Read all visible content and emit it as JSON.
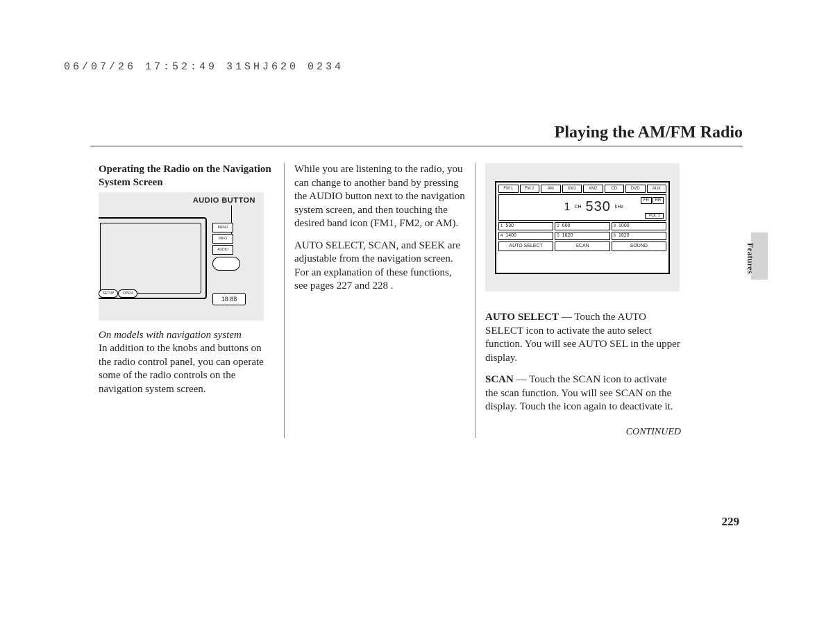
{
  "timestamp": "06/07/26 17:52:49 31SHJ620 0234",
  "page_title": "Playing the AM/FM Radio",
  "side_tab_label": "Features",
  "page_number": "229",
  "continued": "CONTINUED",
  "col1": {
    "heading": "Operating the Radio on the Navigation System Screen",
    "figure_label": "AUDIO BUTTON",
    "buttons": {
      "menu": "MENU",
      "info": "INFO",
      "audio": "AUDIO",
      "setup": "SETUP",
      "open": "OPEN"
    },
    "clock": "18:88",
    "caption_italic": "On models with navigation system",
    "para": "In addition to the knobs and buttons on the radio control panel, you can operate some of the radio controls on the navigation system screen."
  },
  "col2": {
    "para1": "While you are listening to the radio, you can change to another band by pressing the AUDIO button next to the navigation system screen, and then touching the desired band icon (FM1, FM2, or AM).",
    "para2": "AUTO SELECT, SCAN, and SEEK are adjustable from the navigation screen. For an explanation of these functions, see pages 227 and 228 ."
  },
  "col3": {
    "radio": {
      "bands": [
        "FM 1",
        "FM 2",
        "AM",
        "XM1",
        "XM2",
        "CD",
        "DVD",
        "AUX"
      ],
      "channel_num": "1",
      "channel_label": "CH",
      "frequency": "530",
      "freq_unit": "kHz",
      "fr": "FR",
      "rr": "RR",
      "vol": "VOL 1",
      "presets": [
        {
          "n": "1",
          "v": "530"
        },
        {
          "n": "2",
          "v": "600"
        },
        {
          "n": "3",
          "v": "1000"
        },
        {
          "n": "4",
          "v": "1400"
        },
        {
          "n": "5",
          "v": "1620"
        },
        {
          "n": "6",
          "v": "1620"
        }
      ],
      "bottom": [
        "AUTO SELECT",
        "SCAN",
        "SOUND"
      ]
    },
    "auto_label": "AUTO SELECT",
    "auto_text": " — Touch the AUTO SELECT icon to activate the auto select function. You will see AUTO SEL in the upper display.",
    "scan_label": "SCAN",
    "scan_text": " — Touch the SCAN icon to activate the scan function. You will see SCAN on the display. Touch the icon again to deactivate it."
  }
}
